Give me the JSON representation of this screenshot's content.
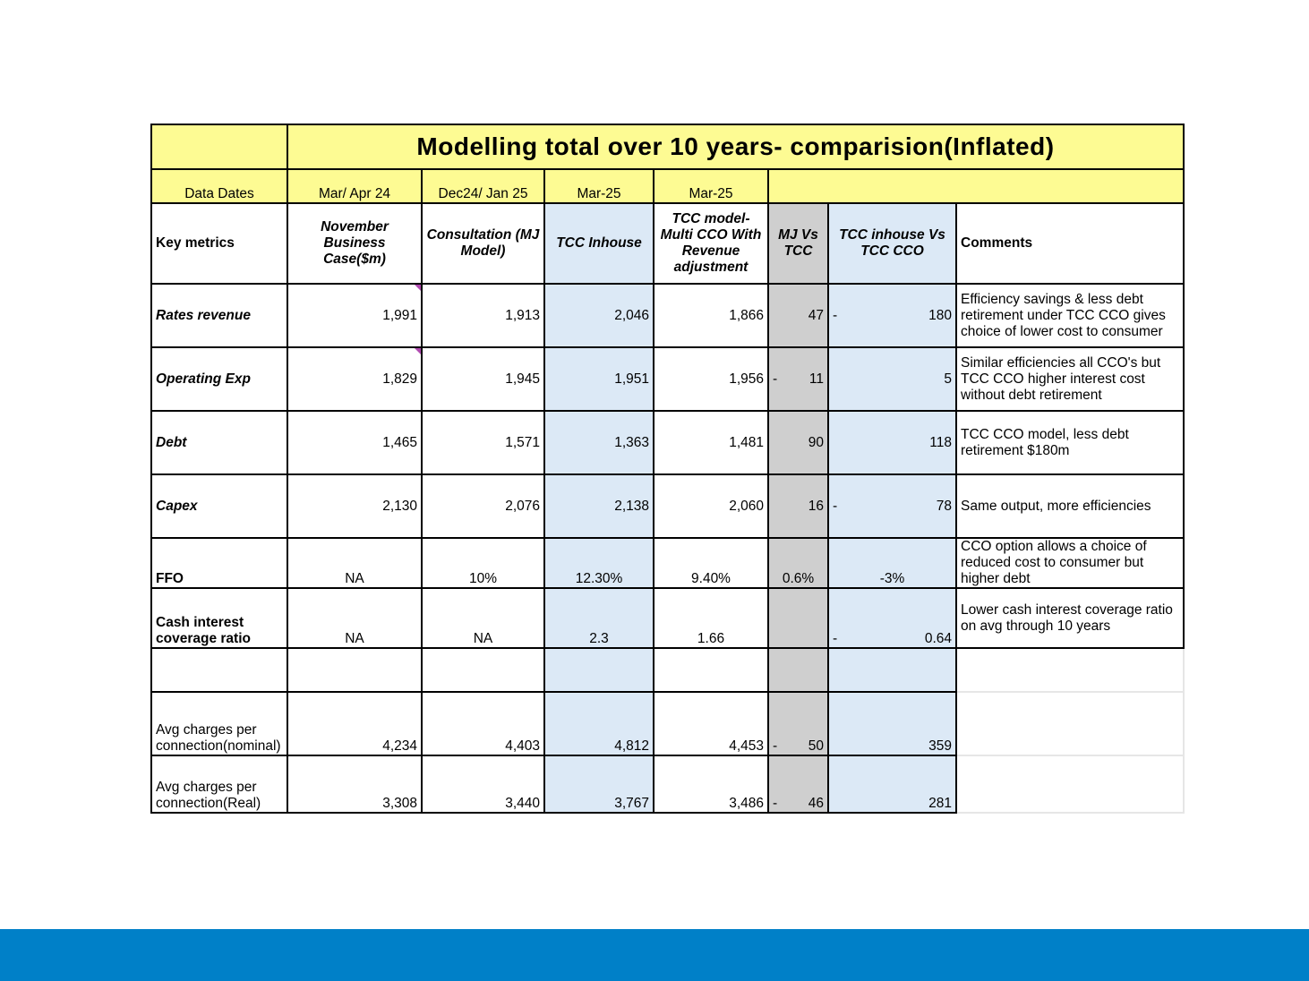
{
  "title": "Modelling total over 10 years- comparision(Inflated)",
  "data_dates": {
    "label": "Data Dates",
    "values": [
      "Mar/ Apr 24",
      "Dec24/ Jan 25",
      "Mar-25",
      "Mar-25"
    ]
  },
  "headers": {
    "key_metrics": "Key metrics",
    "nov_business_case": "November Business Case($m)",
    "consultation": "Consultation (MJ Model)",
    "tcc_inhouse": "TCC Inhouse",
    "tcc_model_multi": "TCC model- Multi CCO With Revenue adjustment",
    "mj_vs_tcc": "MJ Vs TCC",
    "tcc_inhouse_vs_cco": "TCC inhouse Vs TCC CCO",
    "comments": "Comments"
  },
  "rows": [
    {
      "metric": "Rates revenue",
      "c1": "1,991",
      "c2": "1,913",
      "c3": "2,046",
      "c4": "1,866",
      "mj_sign": "",
      "mj": "47",
      "tcc_sign": "-",
      "tcc": "180",
      "comment": " Efficiency savings & less debt retirement under TCC CCO gives choice of lower cost to consumer"
    },
    {
      "metric": "Operating Exp",
      "c1": "1,829",
      "c2": "1,945",
      "c3": "1,951",
      "c4": "1,956",
      "mj_sign": "-",
      "mj": "11",
      "tcc_sign": "",
      "tcc": "5",
      "comment": "Similar efficiencies all CCO's but TCC CCO higher interest cost without debt retirement"
    },
    {
      "metric": "Debt",
      "c1": "1,465",
      "c2": "1,571",
      "c3": "1,363",
      "c4": "1,481",
      "mj_sign": "",
      "mj": "90",
      "tcc_sign": "",
      "tcc": "118",
      "comment": "TCC CCO model, less debt retirement $180m"
    },
    {
      "metric": "Capex",
      "c1": "2,130",
      "c2": "2,076",
      "c3": "2,138",
      "c4": "2,060",
      "mj_sign": "",
      "mj": "16",
      "tcc_sign": "-",
      "tcc": "78",
      "comment": "Same output, more efficiencies"
    },
    {
      "metric": "FFO",
      "c1": "NA",
      "c2": "10%",
      "c3": "12.30%",
      "c4": "9.40%",
      "mj_sign": "",
      "mj": "0.6%",
      "tcc_sign": "",
      "tcc": "-3%",
      "comment": "CCO option allows a choice of reduced cost to consumer but higher debt"
    },
    {
      "metric": "Cash interest coverage ratio",
      "c1": "NA",
      "c2": "NA",
      "c3": "2.3",
      "c4": "1.66",
      "mj_sign": "",
      "mj": "",
      "tcc_sign": "-",
      "tcc": "0.64",
      "comment": "Lower cash interest coverage ratio on avg through 10 years"
    },
    {
      "metric": "",
      "c1": "",
      "c2": "",
      "c3": "",
      "c4": "",
      "mj_sign": "",
      "mj": "",
      "tcc_sign": "",
      "tcc": "",
      "comment": ""
    },
    {
      "metric": "Avg charges per connection(nominal)",
      "c1": "4,234",
      "c2": "4,403",
      "c3": "4,812",
      "c4": "4,453",
      "mj_sign": "-",
      "mj": "50",
      "tcc_sign": "",
      "tcc": "359",
      "comment": ""
    },
    {
      "metric": "Avg charges per connection(Real)",
      "c1": "3,308",
      "c2": "3,440",
      "c3": "3,767",
      "c4": "3,486",
      "mj_sign": "-",
      "mj": "46",
      "tcc_sign": "",
      "tcc": "281",
      "comment": ""
    }
  ],
  "colors": {
    "header_yellow": "#fdfb93",
    "tcc_blue": "#dce9f6",
    "mj_gray": "#cfcfcf",
    "footer_bar": "#0080c8"
  }
}
